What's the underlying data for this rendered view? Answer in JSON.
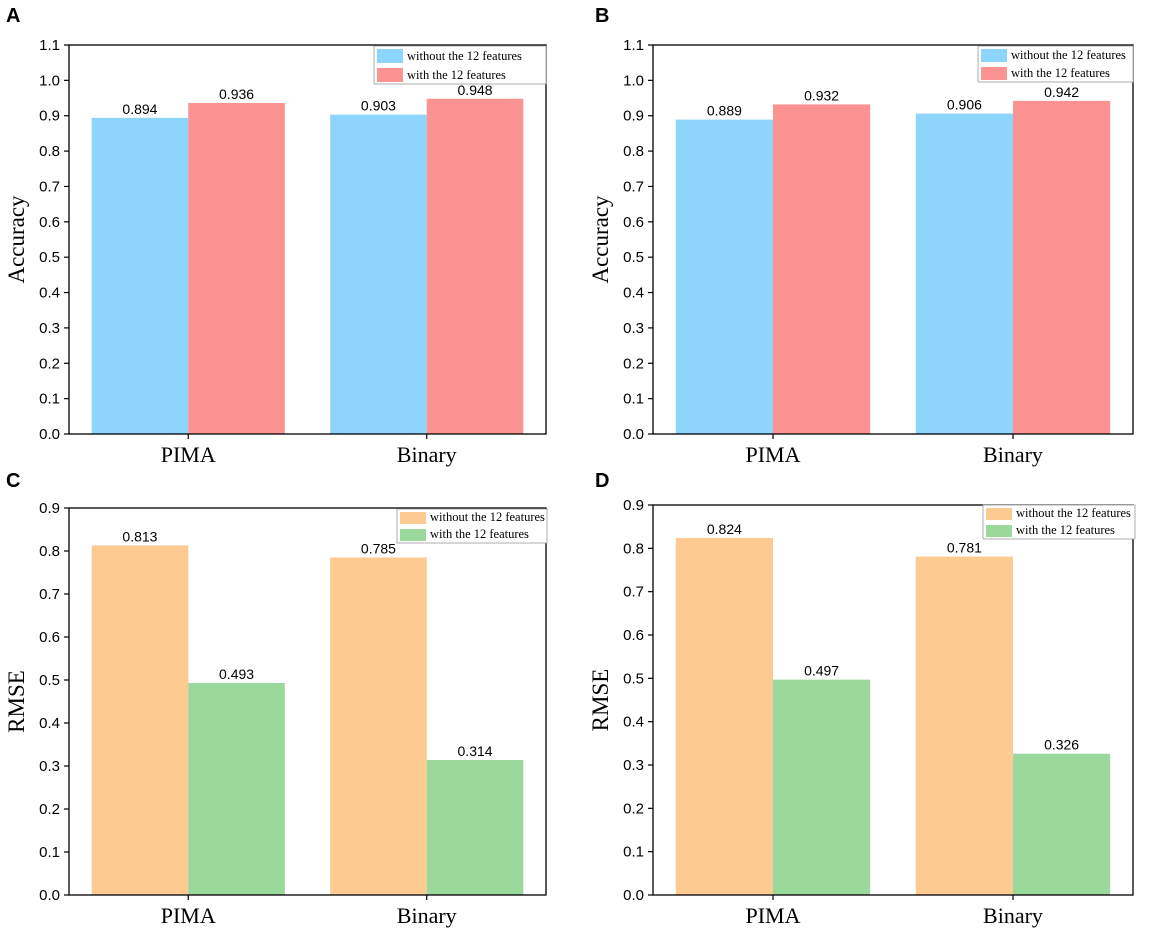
{
  "chart_data": [
    {
      "panel": "A",
      "type": "bar",
      "categories": [
        "PIMA",
        "Binary"
      ],
      "series": [
        {
          "name": "without the 12 features",
          "color": "#8dd5fb",
          "values": [
            0.894,
            0.903
          ],
          "labels": [
            "0.894",
            "0.903"
          ]
        },
        {
          "name": "with the 12 features",
          "color": "#fc9393",
          "values": [
            0.936,
            0.948
          ],
          "labels": [
            "0.936",
            "0.948"
          ]
        }
      ],
      "ylabel": "Accuracy",
      "ylim": [
        0,
        1.1
      ],
      "yticks": [
        "0.0",
        "0.1",
        "0.2",
        "0.3",
        "0.4",
        "0.5",
        "0.6",
        "0.7",
        "0.8",
        "0.9",
        "1.0",
        "1.1"
      ],
      "legend": "top-right"
    },
    {
      "panel": "B",
      "type": "bar",
      "categories": [
        "PIMA",
        "Binary"
      ],
      "series": [
        {
          "name": "without the 12 features",
          "color": "#8dd5fb",
          "values": [
            0.889,
            0.906
          ],
          "labels": [
            "0.889",
            "0.906"
          ]
        },
        {
          "name": "with the 12 features",
          "color": "#fc9393",
          "values": [
            0.932,
            0.942
          ],
          "labels": [
            "0.932",
            "0.942"
          ]
        }
      ],
      "ylabel": "Accuracy",
      "ylim": [
        0,
        1.1
      ],
      "yticks": [
        "0.0",
        "0.1",
        "0.2",
        "0.3",
        "0.4",
        "0.5",
        "0.6",
        "0.7",
        "0.8",
        "0.9",
        "1.0",
        "1.1"
      ],
      "legend": "top-right"
    },
    {
      "panel": "C",
      "type": "bar",
      "categories": [
        "PIMA",
        "Binary"
      ],
      "series": [
        {
          "name": "without the 12 features",
          "color": "#fdcb91",
          "values": [
            0.813,
            0.785
          ],
          "labels": [
            "0.813",
            "0.785"
          ]
        },
        {
          "name": "with the 12 features",
          "color": "#9ad89b",
          "values": [
            0.493,
            0.314
          ],
          "labels": [
            "0.493",
            "0.314"
          ]
        }
      ],
      "ylabel": "RMSE",
      "ylim": [
        0,
        0.9
      ],
      "yticks": [
        "0.0",
        "0.1",
        "0.2",
        "0.3",
        "0.4",
        "0.5",
        "0.6",
        "0.7",
        "0.8",
        "0.9"
      ],
      "legend": "top-right"
    },
    {
      "panel": "D",
      "type": "bar",
      "categories": [
        "PIMA",
        "Binary"
      ],
      "series": [
        {
          "name": "without the 12 features",
          "color": "#fdcb91",
          "values": [
            0.824,
            0.781
          ],
          "labels": [
            "0.824",
            "0.781"
          ]
        },
        {
          "name": "with the 12 features",
          "color": "#9ad89b",
          "values": [
            0.497,
            0.326
          ],
          "labels": [
            "0.497",
            "0.326"
          ]
        }
      ],
      "ylabel": "RMSE",
      "ylim": [
        0,
        0.9
      ],
      "yticks": [
        "0.0",
        "0.1",
        "0.2",
        "0.3",
        "0.4",
        "0.5",
        "0.6",
        "0.7",
        "0.8",
        "0.9"
      ],
      "legend": "top-right"
    }
  ]
}
